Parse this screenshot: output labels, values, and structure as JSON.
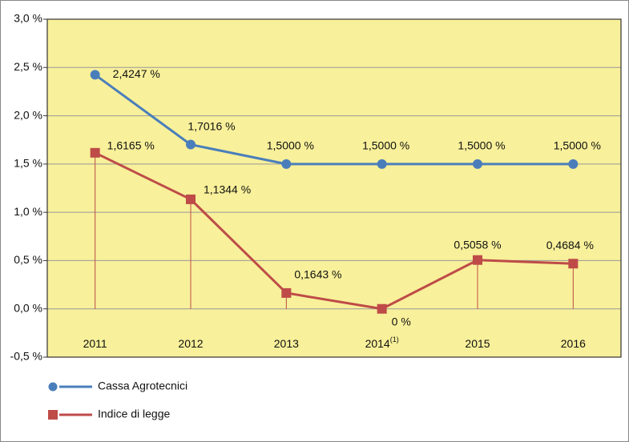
{
  "chart_data": {
    "type": "line",
    "categories": [
      "2011",
      "2012",
      "2013",
      "2014",
      "2015",
      "2016"
    ],
    "category_superscripts": [
      null,
      null,
      null,
      "(1)",
      null,
      null
    ],
    "series": [
      {
        "name": "Cassa Agrotecnici",
        "color": "#4a7ebb",
        "marker": "circle",
        "values": [
          2.4247,
          1.7016,
          1.5,
          1.5,
          1.5,
          1.5
        ],
        "value_labels": [
          "2,4247 %",
          "1,7016 %",
          "1,5000 %",
          "1,5000 %",
          "1,5000 %",
          "1,5000 %"
        ]
      },
      {
        "name": "Indice di legge",
        "color": "#be4b48",
        "marker": "square",
        "drop_lines": true,
        "values": [
          1.6165,
          1.1344,
          0.1643,
          0,
          0.5058,
          0.4684
        ],
        "value_labels": [
          "1,6165 %",
          "1,1344 %",
          "0,1643 %",
          "0 %",
          "0,5058 %",
          "0,4684 %"
        ]
      }
    ],
    "ylim": [
      -0.5,
      3.0
    ],
    "yticks": [
      {
        "value": -0.5,
        "label": "-0,5 %"
      },
      {
        "value": 0,
        "label": "0,0 %"
      },
      {
        "value": 0.5,
        "label": "0,5 %"
      },
      {
        "value": 1.0,
        "label": "1,0 %"
      },
      {
        "value": 1.5,
        "label": "1,5 %"
      },
      {
        "value": 2.0,
        "label": "2,0 %"
      },
      {
        "value": 2.5,
        "label": "2,5 %"
      },
      {
        "value": 3.0,
        "label": "3,0 %"
      }
    ],
    "grid": true,
    "background": "#f8f09a"
  }
}
